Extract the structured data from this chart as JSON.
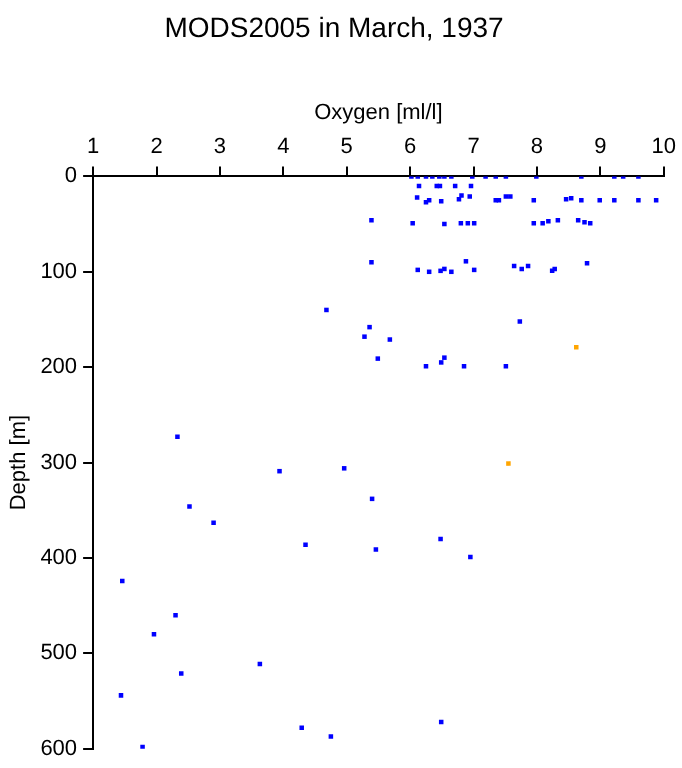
{
  "chart_data": {
    "type": "scatter",
    "title": "MODS2005 in March, 1937",
    "xlabel": "Oxygen [ml/l]",
    "ylabel": "Depth [m]",
    "xlim": [
      1,
      10
    ],
    "xticks": [
      1,
      2,
      3,
      4,
      5,
      6,
      7,
      8,
      9,
      10
    ],
    "ylim": [
      600,
      0
    ],
    "yticks": [
      0,
      100,
      200,
      300,
      400,
      500,
      600
    ],
    "grid": false,
    "legend": false,
    "marker": "square",
    "series": [
      {
        "color": "#0000ff",
        "x": [
          6.02,
          6.12,
          6.25,
          6.35,
          6.46,
          6.54,
          6.65,
          6.98,
          7.19,
          7.35,
          7.51,
          7.99,
          8.7,
          9.22,
          9.36,
          9.6,
          6.14,
          6.42,
          6.47,
          6.71,
          6.96,
          6.11,
          6.25,
          6.3,
          6.49,
          6.77,
          6.81,
          6.94,
          7.35,
          7.4,
          7.51,
          7.58,
          7.95,
          8.46,
          8.54,
          8.7,
          8.99,
          9.22,
          9.6,
          9.88,
          5.39,
          6.04,
          6.54,
          6.8,
          6.91,
          7.01,
          7.95,
          8.09,
          8.18,
          8.33,
          8.65,
          8.75,
          8.84,
          5.39,
          6.12,
          6.3,
          6.48,
          6.54,
          6.65,
          6.88,
          7.01,
          7.64,
          7.76,
          7.86,
          8.24,
          8.28,
          8.79,
          4.68,
          7.73,
          5.28,
          5.36,
          5.68,
          5.49,
          6.25,
          6.49,
          6.54,
          6.85,
          7.51,
          2.33,
          1.46,
          2.3,
          3.94,
          4.96,
          5.4,
          2.52,
          2.9,
          4.35,
          5.46,
          6.48,
          6.95,
          1.44,
          1.96,
          2.39,
          3.63,
          4.29,
          4.75,
          6.49,
          1.78
        ],
        "values": [
          0,
          0,
          0,
          0,
          0,
          0,
          0,
          0,
          0,
          0,
          0,
          0,
          0,
          0,
          0,
          0,
          10,
          10,
          10,
          10,
          10,
          22,
          27,
          25,
          26,
          24,
          20,
          21,
          25,
          25,
          21,
          21,
          25,
          24,
          23,
          25,
          25,
          25,
          25,
          25,
          46,
          49,
          50,
          49,
          49,
          49,
          49,
          49,
          47,
          46,
          46,
          48,
          49,
          90,
          98,
          100,
          99,
          97,
          100,
          89,
          98,
          94,
          97,
          94,
          99,
          97,
          91,
          140,
          152,
          168,
          158,
          171,
          191,
          199,
          195,
          190,
          199,
          199,
          273,
          424,
          460,
          309,
          306,
          338,
          346,
          363,
          386,
          391,
          380,
          399,
          544,
          480,
          521,
          511,
          578,
          587,
          572,
          598
        ]
      },
      {
        "color": "#ffa500",
        "x": [
          8.62,
          7.55
        ],
        "values": [
          179,
          301
        ]
      }
    ]
  }
}
